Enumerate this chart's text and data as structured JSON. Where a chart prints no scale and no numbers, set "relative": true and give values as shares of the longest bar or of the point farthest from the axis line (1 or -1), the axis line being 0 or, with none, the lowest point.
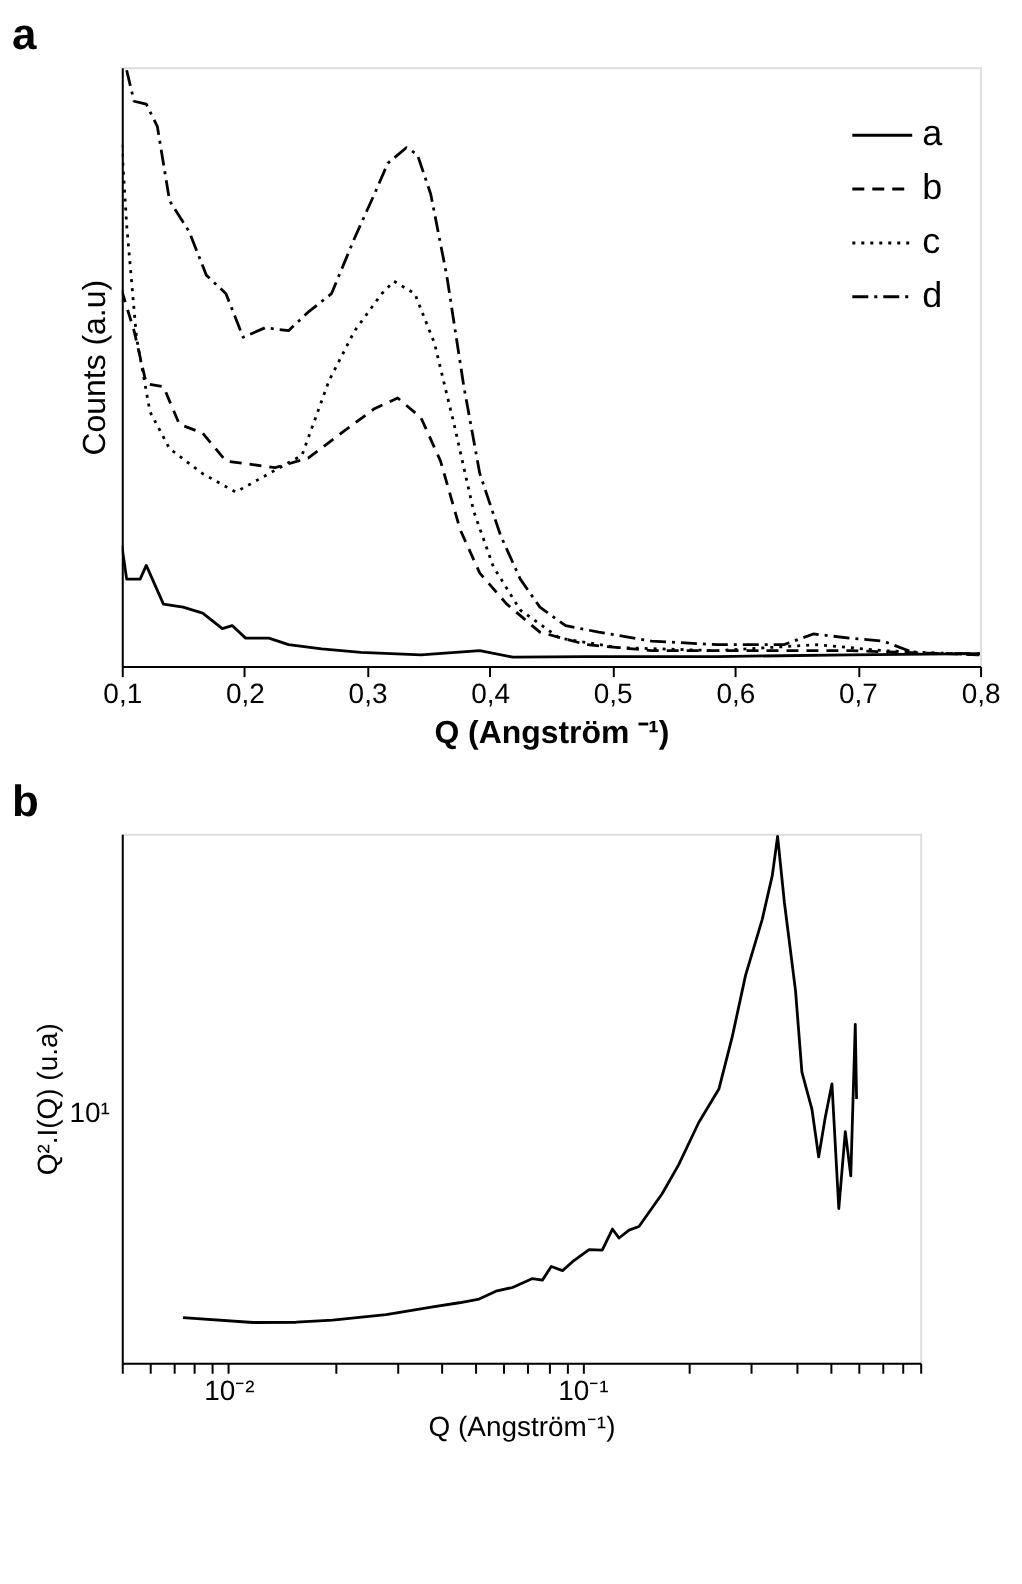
{
  "chart_data": [
    {
      "type": "line",
      "title": "a",
      "xlabel": "Q (Angström ⁻¹)",
      "ylabel": "Counts (a.u)",
      "relative": true,
      "xlim": [
        0.1,
        0.8
      ],
      "xticks": [
        {
          "value": 0.1,
          "label": "0,1"
        },
        {
          "value": 0.2,
          "label": "0,2"
        },
        {
          "value": 0.3,
          "label": "0,3"
        },
        {
          "value": 0.4,
          "label": "0,4"
        },
        {
          "value": 0.5,
          "label": "0,5"
        },
        {
          "value": 0.6,
          "label": "0,6"
        },
        {
          "value": 0.7,
          "label": "0,7"
        },
        {
          "value": 0.8,
          "label": "0,8"
        }
      ],
      "legend": "top right",
      "grid": false,
      "series": [
        {
          "name": "a",
          "color": "#000000",
          "line_style": "solid",
          "x": [
            0.1,
            0.104,
            0.115,
            0.12,
            0.134,
            0.15,
            0.166,
            0.182,
            0.19,
            0.201,
            0.22,
            0.236,
            0.263,
            0.295,
            0.344,
            0.392,
            0.419,
            0.479,
            0.586,
            0.694,
            0.8
          ],
          "values": [
            0.203,
            0.146,
            0.146,
            0.169,
            0.104,
            0.099,
            0.089,
            0.063,
            0.068,
            0.047,
            0.047,
            0.036,
            0.029,
            0.023,
            0.019,
            0.026,
            0.015,
            0.016,
            0.016,
            0.019,
            0.021
          ]
        },
        {
          "name": "b",
          "color": "#000000",
          "line_style": "dashed",
          "x": [
            0.1,
            0.11,
            0.12,
            0.134,
            0.147,
            0.166,
            0.185,
            0.204,
            0.225,
            0.252,
            0.279,
            0.306,
            0.325,
            0.344,
            0.36,
            0.376,
            0.392,
            0.414,
            0.441,
            0.479,
            0.532,
            0.613,
            0.694,
            0.8
          ],
          "values": [
            0.63,
            0.563,
            0.474,
            0.469,
            0.406,
            0.391,
            0.344,
            0.339,
            0.333,
            0.349,
            0.391,
            0.432,
            0.45,
            0.417,
            0.344,
            0.229,
            0.156,
            0.104,
            0.057,
            0.036,
            0.026,
            0.026,
            0.026,
            0.019
          ]
        },
        {
          "name": "c",
          "color": "#000000",
          "line_style": "dotted",
          "x": [
            0.1,
            0.104,
            0.112,
            0.123,
            0.139,
            0.166,
            0.193,
            0.22,
            0.247,
            0.269,
            0.29,
            0.312,
            0.322,
            0.339,
            0.355,
            0.371,
            0.387,
            0.403,
            0.425,
            0.457,
            0.505,
            0.586,
            0.667,
            0.721,
            0.8
          ],
          "values": [
            0.875,
            0.74,
            0.552,
            0.427,
            0.365,
            0.323,
            0.292,
            0.323,
            0.354,
            0.479,
            0.563,
            0.625,
            0.646,
            0.625,
            0.542,
            0.406,
            0.26,
            0.167,
            0.094,
            0.047,
            0.031,
            0.026,
            0.036,
            0.026,
            0.019
          ]
        },
        {
          "name": "d",
          "color": "#000000",
          "line_style": "dashdot",
          "x": [
            0.104,
            0.11,
            0.12,
            0.129,
            0.139,
            0.155,
            0.169,
            0.185,
            0.199,
            0.217,
            0.236,
            0.252,
            0.271,
            0.29,
            0.306,
            0.317,
            0.332,
            0.341,
            0.352,
            0.365,
            0.379,
            0.392,
            0.409,
            0.425,
            0.441,
            0.462,
            0.489,
            0.532,
            0.586,
            0.64,
            0.664,
            0.694,
            0.721,
            0.748,
            0.8
          ],
          "values": [
            1.0,
            0.948,
            0.943,
            0.906,
            0.781,
            0.729,
            0.656,
            0.625,
            0.552,
            0.568,
            0.563,
            0.594,
            0.625,
            0.719,
            0.792,
            0.844,
            0.87,
            0.859,
            0.792,
            0.656,
            0.469,
            0.323,
            0.219,
            0.146,
            0.099,
            0.068,
            0.057,
            0.042,
            0.036,
            0.036,
            0.054,
            0.047,
            0.042,
            0.021,
            0.021
          ]
        }
      ]
    },
    {
      "type": "line",
      "title": "b",
      "xlabel": "Q (Angström⁻¹)",
      "ylabel": "Q².I(Q) (u.a)",
      "log": "x",
      "grid": false,
      "xlim": [
        0.005,
        0.9
      ],
      "xticks": [
        {
          "value": 0.005,
          "label": null
        },
        {
          "value": 0.006,
          "label": null
        },
        {
          "value": 0.007,
          "label": null
        },
        {
          "value": 0.008,
          "label": null
        },
        {
          "value": 0.009,
          "label": null
        },
        {
          "value": 0.01,
          "label": "10⁻²"
        },
        {
          "value": 0.02,
          "label": null
        },
        {
          "value": 0.03,
          "label": null
        },
        {
          "value": 0.04,
          "label": null
        },
        {
          "value": 0.05,
          "label": null
        },
        {
          "value": 0.06,
          "label": null
        },
        {
          "value": 0.07,
          "label": null
        },
        {
          "value": 0.08,
          "label": null
        },
        {
          "value": 0.09,
          "label": null
        },
        {
          "value": 0.1,
          "label": "10⁻¹"
        },
        {
          "value": 0.2,
          "label": null
        },
        {
          "value": 0.3,
          "label": null
        },
        {
          "value": 0.4,
          "label": null
        },
        {
          "value": 0.5,
          "label": null
        },
        {
          "value": 0.6,
          "label": null
        },
        {
          "value": 0.7,
          "label": null
        },
        {
          "value": 0.8,
          "label": null
        },
        {
          "value": 0.9,
          "label": null
        }
      ],
      "relative": true,
      "annotations": [
        "10¹"
      ],
      "series": [
        {
          "color": "#000000",
          "line_style": "solid",
          "x": [
            0.00745,
            0.01174,
            0.01556,
            0.0197,
            0.0279,
            0.0378,
            0.0449,
            0.0511,
            0.057,
            0.0635,
            0.0723,
            0.0771,
            0.0817,
            0.0879,
            0.0938,
            0.1045,
            0.1138,
            0.1216,
            0.1269,
            0.1355,
            0.1445,
            0.168,
            0.187,
            0.213,
            0.243,
            0.265,
            0.289,
            0.322,
            0.344,
            0.356,
            0.372,
            0.4,
            0.417,
            0.445,
            0.465,
            0.485,
            0.507,
            0.53,
            0.553,
            0.573,
            0.59,
            0.595
          ],
          "values": [
            0.0856,
            0.0765,
            0.077,
            0.0811,
            0.0916,
            0.106,
            0.114,
            0.121,
            0.136,
            0.143,
            0.16,
            0.157,
            0.183,
            0.175,
            0.192,
            0.215,
            0.214,
            0.254,
            0.237,
            0.252,
            0.259,
            0.321,
            0.376,
            0.456,
            0.52,
            0.619,
            0.736,
            0.842,
            0.926,
            1.0,
            0.875,
            0.707,
            0.552,
            0.482,
            0.391,
            0.465,
            0.53,
            0.293,
            0.439,
            0.355,
            0.643,
            0.501
          ]
        }
      ]
    }
  ]
}
